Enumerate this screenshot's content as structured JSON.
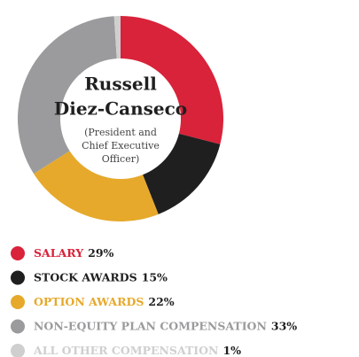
{
  "chart_data": {
    "type": "pie",
    "center_title": [
      "Russell",
      "Diez-Canseco"
    ],
    "center_subtitle": [
      "(President and",
      "Chief Executive",
      "Officer)"
    ],
    "categories": [
      "SALARY",
      "STOCK AWARDS",
      "OPTION AWARDS",
      "NON-EQUITY PLAN COMPENSATION",
      "ALL OTHER COMPENSATION"
    ],
    "values": [
      29,
      15,
      22,
      33,
      1
    ],
    "value_labels": [
      "29%",
      "15%",
      "22%",
      "33%",
      "1%"
    ],
    "colors": [
      "#d8233a",
      "#1f1f1f",
      "#e6a92b",
      "#9b9b9d",
      "#cfcfcf"
    ],
    "label_colors": [
      "#d8233a",
      "#1f1f1f",
      "#e6a92b",
      "#9b9b9d",
      "#cfcfcf"
    ]
  }
}
